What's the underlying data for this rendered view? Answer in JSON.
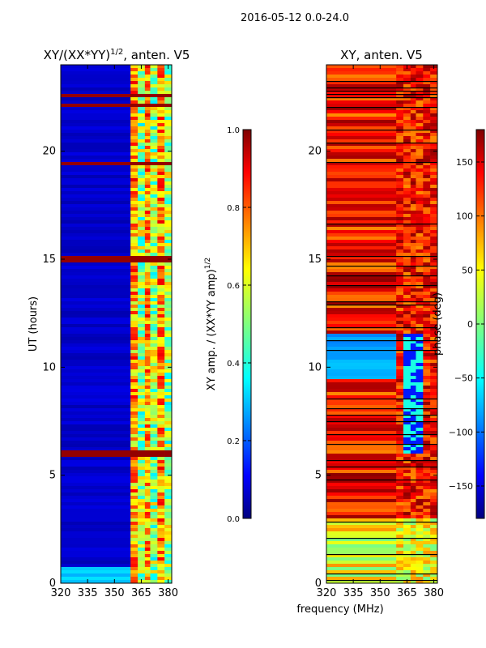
{
  "figure": {
    "suptitle": "2016-05-12 0.0-24.0",
    "shared_xlabel": "frequency (MHz)"
  },
  "colors": {
    "jet": [
      "#00007f",
      "#0000ff",
      "#007fff",
      "#00ffff",
      "#7fff7f",
      "#ffff00",
      "#ff7f00",
      "#ff0000",
      "#7f0000"
    ]
  },
  "chart_data": [
    {
      "type": "heatmap",
      "title_base": "XY/(XX*YY)",
      "title_sup": "1/2",
      "title_tail": ", anten. V5",
      "xlabel": "",
      "ylabel": "UT (hours)",
      "xlim": [
        320,
        382
      ],
      "ylim": [
        0,
        24
      ],
      "xticks": [
        320,
        335,
        350,
        365,
        380
      ],
      "yticks": [
        0,
        5,
        10,
        15,
        20
      ],
      "colorbar": {
        "label_base": "XY amp. / (XX*YY amp)",
        "label_sup": "1/2",
        "range": [
          0.0,
          1.0
        ],
        "ticks": [
          "0.0",
          "0.2",
          "0.4",
          "0.6",
          "0.8",
          "1.0"
        ]
      },
      "description_values": {
        "low_band_mhz": [
          320,
          359
        ],
        "high_band_mhz": [
          359,
          382
        ],
        "typical_low_band_value": 0.05,
        "typical_high_band_value": 0.55,
        "saturated_hours": [
          22.1,
          22.6,
          19.4,
          15.0,
          6.0
        ]
      }
    },
    {
      "type": "heatmap",
      "title": "XY, anten. V5",
      "xlabel": "frequency (MHz)",
      "ylabel": "",
      "xlim": [
        320,
        382
      ],
      "ylim": [
        0,
        24
      ],
      "xticks": [
        320,
        335,
        350,
        365,
        380
      ],
      "yticks": [
        0,
        5,
        10,
        15,
        20
      ],
      "colorbar": {
        "label": "phase (deg)",
        "range": [
          -180,
          180
        ],
        "ticks": [
          "-150",
          "-100",
          "-50",
          "0",
          "50",
          "100",
          "150"
        ]
      },
      "description_values": {
        "typical_phase_deg": 130,
        "noisy_region_hours": [
          9.5,
          11.5
        ],
        "noisy_region_phase_deg": -90
      }
    }
  ]
}
